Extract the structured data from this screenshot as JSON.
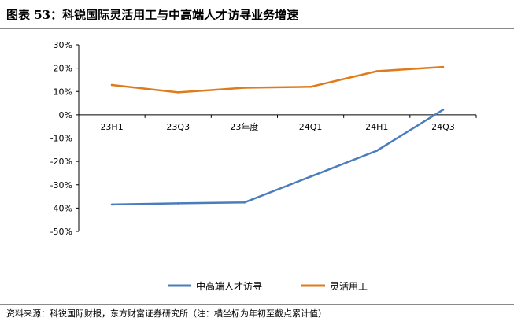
{
  "page": {
    "title": "图表 53：科锐国际灵活用工与中高端人才访寻业务增速",
    "source": "资料来源：科锐国际财报，东方财富证券研究所（注：横坐标为年初至截点累计值）"
  },
  "chart_data": {
    "type": "line",
    "title": "图表 53：科锐国际灵活用工与中高端人才访寻业务增速",
    "categories": [
      "23H1",
      "23Q3",
      "23年度",
      "24Q1",
      "24H1",
      "24Q3"
    ],
    "series": [
      {
        "name": "中高端人才访寻",
        "color": "#4a7ebb",
        "values": [
          -38.5,
          -38.0,
          -37.6,
          -26.5,
          -15.4,
          2.2
        ]
      },
      {
        "name": "灵活用工",
        "color": "#e07b1c",
        "values": [
          12.8,
          9.6,
          11.6,
          12.0,
          18.7,
          20.5
        ]
      }
    ],
    "yticks": [
      30,
      20,
      10,
      0,
      -10,
      -20,
      -30,
      -40,
      -50
    ],
    "ytick_labels": [
      "30%",
      "20%",
      "10%",
      "0%",
      "-10%",
      "-20%",
      "-30%",
      "-40%",
      "-50%"
    ],
    "ylim": [
      -50,
      30
    ],
    "xlabel": "",
    "ylabel": "",
    "grid": false,
    "legend_position": "bottom"
  }
}
